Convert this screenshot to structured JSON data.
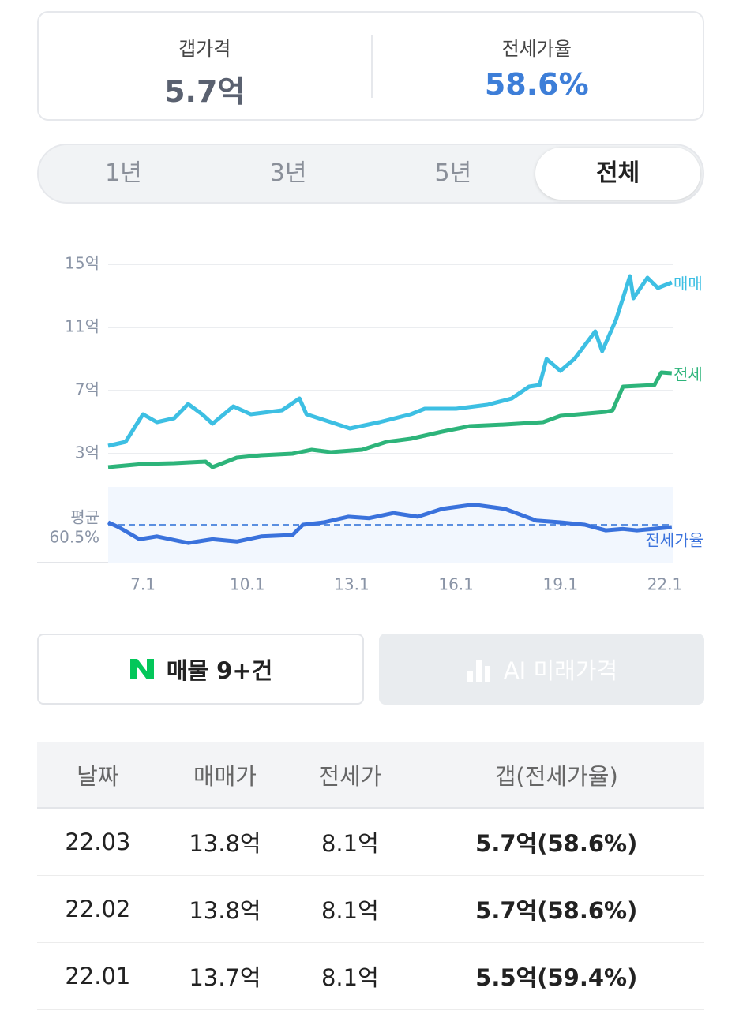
{
  "summary": {
    "gap": {
      "label": "갭가격",
      "value": "5.7억"
    },
    "ratio": {
      "label": "전세가율",
      "value": "58.6%"
    }
  },
  "tabs": {
    "items": [
      "1년",
      "3년",
      "5년",
      "전체"
    ],
    "selected": 3
  },
  "chart_data": [
    {
      "type": "line",
      "xlim": [
        6,
        22.25
      ],
      "xticks": [
        {
          "value": 7,
          "label": "7.1"
        },
        {
          "value": 10,
          "label": "10.1"
        },
        {
          "value": 13,
          "label": "13.1"
        },
        {
          "value": 16,
          "label": "16.1"
        },
        {
          "value": 19,
          "label": "19.1"
        },
        {
          "value": 22,
          "label": "22.1"
        }
      ],
      "ylim": [
        1.75,
        15.75
      ],
      "yticks": [
        {
          "value": 15,
          "label": "15억"
        },
        {
          "value": 11,
          "label": "11억"
        },
        {
          "value": 7,
          "label": "7억"
        },
        {
          "value": 3,
          "label": "3억"
        }
      ],
      "grid": true,
      "series": [
        {
          "name": "매매",
          "color": "#3dbfe3",
          "x": [
            6.0,
            6.5,
            7.0,
            7.4,
            7.9,
            8.3,
            8.7,
            9.0,
            9.6,
            10.1,
            11.0,
            11.5,
            11.7,
            12.4,
            12.95,
            13.8,
            14.7,
            15.1,
            16.0,
            16.9,
            17.6,
            18.1,
            18.4,
            18.6,
            19.0,
            19.4,
            20.0,
            20.2,
            20.6,
            21.0,
            21.1,
            21.5,
            21.8,
            22.2
          ],
          "values": [
            3.5,
            3.75,
            5.5,
            5.0,
            5.25,
            6.15,
            5.5,
            4.9,
            6.0,
            5.5,
            5.75,
            6.5,
            5.5,
            5.0,
            4.6,
            5.0,
            5.5,
            5.85,
            5.85,
            6.1,
            6.5,
            7.25,
            7.35,
            9.0,
            8.25,
            9.0,
            10.75,
            9.5,
            11.5,
            14.25,
            12.85,
            14.15,
            13.5,
            13.85
          ]
        },
        {
          "name": "전세",
          "color": "#2db47a",
          "x": [
            6.0,
            7.0,
            7.9,
            8.8,
            9.0,
            9.7,
            10.4,
            11.3,
            11.85,
            12.4,
            13.3,
            14.0,
            14.7,
            15.6,
            16.4,
            17.4,
            18.5,
            19.0,
            20.3,
            20.5,
            20.8,
            21.7,
            21.9,
            22.2
          ],
          "values": [
            2.15,
            2.35,
            2.4,
            2.5,
            2.15,
            2.75,
            2.9,
            3.0,
            3.25,
            3.1,
            3.25,
            3.75,
            3.95,
            4.4,
            4.75,
            4.85,
            5.0,
            5.4,
            5.65,
            5.75,
            7.25,
            7.35,
            8.15,
            8.1
          ]
        }
      ]
    },
    {
      "type": "line",
      "xlim": [
        6,
        22.25
      ],
      "ylim": [
        20,
        101
      ],
      "reference_line": {
        "name": "평균",
        "value": 60.5,
        "label": "60.5%"
      },
      "series": [
        {
          "name": "전세가율",
          "color": "#3a72dc",
          "x": [
            6.0,
            6.3,
            6.9,
            7.4,
            8.3,
            9.0,
            9.7,
            10.4,
            11.3,
            11.6,
            12.2,
            12.9,
            13.5,
            14.2,
            14.9,
            15.6,
            16.5,
            17.4,
            18.3,
            19.0,
            19.7,
            20.3,
            20.8,
            21.2,
            22.2
          ],
          "values": [
            63,
            58,
            45,
            48,
            41,
            45,
            42.5,
            48,
            49.5,
            60.5,
            63,
            69,
            67.5,
            73,
            69,
            77.5,
            82,
            77.5,
            65,
            63,
            60.5,
            54.5,
            56,
            54.5,
            58
          ]
        }
      ]
    }
  ],
  "buttons": {
    "listings": "매물 9+건",
    "ai": "AI 미래가격"
  },
  "table": {
    "header": [
      "날짜",
      "매매가",
      "전세가",
      "갭(전세가율)"
    ],
    "rows": [
      [
        "22.03",
        "13.8억",
        "8.1억",
        "5.7억(58.6%)"
      ],
      [
        "22.02",
        "13.8억",
        "8.1억",
        "5.7억(58.6%)"
      ],
      [
        "22.01",
        "13.7억",
        "8.1억",
        "5.5억(59.4%)"
      ]
    ]
  }
}
